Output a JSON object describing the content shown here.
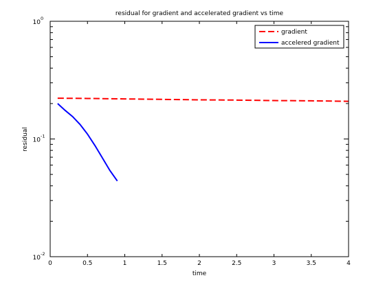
{
  "chart_data": {
    "type": "line",
    "title": "residual for gradient and accelerated gradient vs time",
    "xlabel": "time",
    "ylabel": "residual",
    "xlim": [
      0,
      4
    ],
    "ylim": [
      0.01,
      1
    ],
    "yscale": "log",
    "grid": false,
    "legend_position": "top-right",
    "x_ticks": [
      0,
      0.5,
      1,
      1.5,
      2,
      2.5,
      3,
      3.5,
      4
    ],
    "x_tick_labels": [
      "0",
      "0.5",
      "1",
      "1.5",
      "2",
      "2.5",
      "3",
      "3.5",
      "4"
    ],
    "y_ticks": [
      0.01,
      0.1,
      1
    ],
    "y_tick_labels": [
      {
        "base": "10",
        "exp": "-2"
      },
      {
        "base": "10",
        "exp": "-1"
      },
      {
        "base": "10",
        "exp": "0"
      }
    ],
    "series": [
      {
        "name": "gradient",
        "color": "#ff0000",
        "dash": "dashed",
        "x": [
          0.1,
          0.5,
          1.0,
          1.5,
          2.0,
          2.5,
          3.0,
          3.5,
          4.0
        ],
        "y": [
          0.222,
          0.221,
          0.219,
          0.217,
          0.215,
          0.214,
          0.212,
          0.211,
          0.209
        ]
      },
      {
        "name": "accelered gradient",
        "color": "#0000ff",
        "dash": "solid",
        "x": [
          0.1,
          0.2,
          0.3,
          0.4,
          0.5,
          0.6,
          0.7,
          0.8,
          0.9
        ],
        "y": [
          0.2,
          0.175,
          0.155,
          0.133,
          0.11,
          0.088,
          0.069,
          0.054,
          0.044
        ]
      }
    ]
  }
}
